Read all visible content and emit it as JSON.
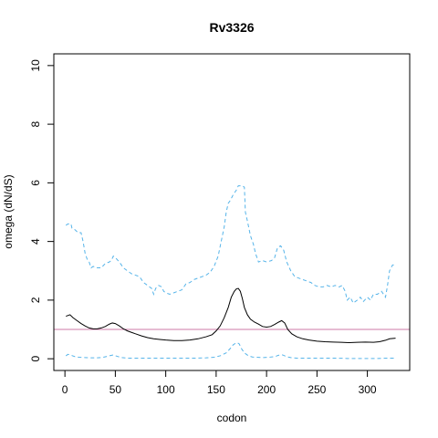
{
  "chart_data": {
    "type": "line",
    "title": "Rv3326",
    "xlabel": "codon",
    "ylabel": "omega (dN/dS)",
    "xlim": [
      -11,
      342
    ],
    "ylim": [
      -0.4,
      10.4
    ],
    "x_ticks": [
      0,
      50,
      100,
      150,
      200,
      250,
      300
    ],
    "y_ticks": [
      0,
      2,
      4,
      6,
      8,
      10
    ],
    "grid": false,
    "reference_line": {
      "y": 1,
      "color": "#cc79a7"
    },
    "series": [
      {
        "role": "upper",
        "color": "#56b4e9",
        "dash": "dashed",
        "points": [
          [
            1,
            4.55
          ],
          [
            3,
            4.6
          ],
          [
            6,
            4.6
          ],
          [
            7,
            4.45
          ],
          [
            10,
            4.4
          ],
          [
            13,
            4.3
          ],
          [
            16,
            4.3
          ],
          [
            18,
            4.0
          ],
          [
            20,
            3.6
          ],
          [
            22,
            3.4
          ],
          [
            24,
            3.3
          ],
          [
            26,
            3.1
          ],
          [
            28,
            3.15
          ],
          [
            32,
            3.1
          ],
          [
            36,
            3.1
          ],
          [
            40,
            3.25
          ],
          [
            44,
            3.3
          ],
          [
            46,
            3.35
          ],
          [
            48,
            3.5
          ],
          [
            50,
            3.45
          ],
          [
            54,
            3.3
          ],
          [
            58,
            3.1
          ],
          [
            62,
            3.0
          ],
          [
            66,
            2.9
          ],
          [
            70,
            2.85
          ],
          [
            74,
            2.8
          ],
          [
            78,
            2.6
          ],
          [
            82,
            2.5
          ],
          [
            86,
            2.4
          ],
          [
            88,
            2.2
          ],
          [
            90,
            2.4
          ],
          [
            93,
            2.5
          ],
          [
            96,
            2.45
          ],
          [
            98,
            2.3
          ],
          [
            100,
            2.25
          ],
          [
            104,
            2.2
          ],
          [
            108,
            2.25
          ],
          [
            112,
            2.3
          ],
          [
            116,
            2.35
          ],
          [
            120,
            2.55
          ],
          [
            124,
            2.6
          ],
          [
            128,
            2.7
          ],
          [
            132,
            2.75
          ],
          [
            136,
            2.8
          ],
          [
            140,
            2.85
          ],
          [
            144,
            2.95
          ],
          [
            148,
            3.15
          ],
          [
            152,
            3.5
          ],
          [
            155,
            4.0
          ],
          [
            158,
            4.5
          ],
          [
            160,
            5.0
          ],
          [
            162,
            5.3
          ],
          [
            164,
            5.4
          ],
          [
            167,
            5.6
          ],
          [
            170,
            5.75
          ],
          [
            172,
            5.9
          ],
          [
            176,
            5.9
          ],
          [
            178,
            5.85
          ],
          [
            179,
            5.0
          ],
          [
            181,
            4.7
          ],
          [
            184,
            4.2
          ],
          [
            187,
            3.9
          ],
          [
            189,
            3.6
          ],
          [
            192,
            3.3
          ],
          [
            196,
            3.35
          ],
          [
            200,
            3.3
          ],
          [
            205,
            3.35
          ],
          [
            208,
            3.45
          ],
          [
            211,
            3.8
          ],
          [
            214,
            3.85
          ],
          [
            217,
            3.7
          ],
          [
            220,
            3.3
          ],
          [
            224,
            3.0
          ],
          [
            228,
            2.8
          ],
          [
            232,
            2.75
          ],
          [
            236,
            2.7
          ],
          [
            240,
            2.65
          ],
          [
            244,
            2.6
          ],
          [
            248,
            2.5
          ],
          [
            252,
            2.45
          ],
          [
            256,
            2.45
          ],
          [
            260,
            2.5
          ],
          [
            264,
            2.45
          ],
          [
            268,
            2.5
          ],
          [
            272,
            2.45
          ],
          [
            275,
            2.5
          ],
          [
            278,
            2.3
          ],
          [
            280,
            2.0
          ],
          [
            283,
            2.1
          ],
          [
            286,
            1.9
          ],
          [
            290,
            2.0
          ],
          [
            293,
            2.1
          ],
          [
            296,
            1.95
          ],
          [
            300,
            2.1
          ],
          [
            303,
            2.0
          ],
          [
            306,
            2.2
          ],
          [
            310,
            2.2
          ],
          [
            314,
            2.3
          ],
          [
            316,
            2.2
          ],
          [
            318,
            2.1
          ],
          [
            320,
            2.5
          ],
          [
            322,
            3.0
          ],
          [
            325,
            3.2
          ],
          [
            328,
            3.2
          ]
        ]
      },
      {
        "role": "estimate",
        "color": "#000000",
        "dash": "solid",
        "points": [
          [
            1,
            1.45
          ],
          [
            5,
            1.5
          ],
          [
            8,
            1.4
          ],
          [
            12,
            1.3
          ],
          [
            16,
            1.2
          ],
          [
            20,
            1.12
          ],
          [
            24,
            1.05
          ],
          [
            28,
            1.02
          ],
          [
            32,
            1.02
          ],
          [
            36,
            1.05
          ],
          [
            40,
            1.1
          ],
          [
            44,
            1.18
          ],
          [
            47,
            1.22
          ],
          [
            50,
            1.2
          ],
          [
            54,
            1.12
          ],
          [
            58,
            1.02
          ],
          [
            62,
            0.95
          ],
          [
            66,
            0.9
          ],
          [
            70,
            0.85
          ],
          [
            76,
            0.78
          ],
          [
            82,
            0.72
          ],
          [
            88,
            0.68
          ],
          [
            94,
            0.66
          ],
          [
            100,
            0.64
          ],
          [
            108,
            0.62
          ],
          [
            116,
            0.62
          ],
          [
            124,
            0.64
          ],
          [
            132,
            0.68
          ],
          [
            140,
            0.75
          ],
          [
            146,
            0.82
          ],
          [
            150,
            0.95
          ],
          [
            154,
            1.12
          ],
          [
            158,
            1.4
          ],
          [
            162,
            1.75
          ],
          [
            165,
            2.1
          ],
          [
            168,
            2.3
          ],
          [
            170,
            2.38
          ],
          [
            172,
            2.4
          ],
          [
            174,
            2.3
          ],
          [
            176,
            2.05
          ],
          [
            178,
            1.75
          ],
          [
            181,
            1.5
          ],
          [
            184,
            1.35
          ],
          [
            188,
            1.25
          ],
          [
            192,
            1.18
          ],
          [
            196,
            1.1
          ],
          [
            200,
            1.08
          ],
          [
            204,
            1.1
          ],
          [
            208,
            1.17
          ],
          [
            212,
            1.25
          ],
          [
            215,
            1.3
          ],
          [
            218,
            1.22
          ],
          [
            221,
            1.0
          ],
          [
            225,
            0.85
          ],
          [
            230,
            0.75
          ],
          [
            236,
            0.68
          ],
          [
            242,
            0.64
          ],
          [
            250,
            0.6
          ],
          [
            258,
            0.58
          ],
          [
            266,
            0.57
          ],
          [
            274,
            0.56
          ],
          [
            282,
            0.55
          ],
          [
            290,
            0.56
          ],
          [
            298,
            0.57
          ],
          [
            306,
            0.56
          ],
          [
            312,
            0.58
          ],
          [
            318,
            0.63
          ],
          [
            322,
            0.68
          ],
          [
            328,
            0.7
          ]
        ]
      },
      {
        "role": "lower",
        "color": "#56b4e9",
        "dash": "dashed",
        "points": [
          [
            1,
            0.1
          ],
          [
            3,
            0.15
          ],
          [
            6,
            0.12
          ],
          [
            10,
            0.07
          ],
          [
            14,
            0.05
          ],
          [
            20,
            0.04
          ],
          [
            26,
            0.03
          ],
          [
            32,
            0.03
          ],
          [
            38,
            0.05
          ],
          [
            44,
            0.1
          ],
          [
            48,
            0.13
          ],
          [
            52,
            0.08
          ],
          [
            56,
            0.04
          ],
          [
            62,
            0.02
          ],
          [
            70,
            0.02
          ],
          [
            80,
            0.02
          ],
          [
            90,
            0.02
          ],
          [
            100,
            0.02
          ],
          [
            110,
            0.02
          ],
          [
            120,
            0.02
          ],
          [
            130,
            0.02
          ],
          [
            140,
            0.03
          ],
          [
            148,
            0.05
          ],
          [
            154,
            0.1
          ],
          [
            160,
            0.2
          ],
          [
            164,
            0.35
          ],
          [
            167,
            0.48
          ],
          [
            169,
            0.52
          ],
          [
            171,
            0.55
          ],
          [
            173,
            0.5
          ],
          [
            175,
            0.35
          ],
          [
            178,
            0.2
          ],
          [
            182,
            0.1
          ],
          [
            186,
            0.06
          ],
          [
            190,
            0.05
          ],
          [
            196,
            0.04
          ],
          [
            202,
            0.05
          ],
          [
            208,
            0.07
          ],
          [
            212,
            0.12
          ],
          [
            216,
            0.13
          ],
          [
            220,
            0.07
          ],
          [
            224,
            0.04
          ],
          [
            230,
            0.02
          ],
          [
            240,
            0.02
          ],
          [
            250,
            0.02
          ],
          [
            260,
            0.02
          ],
          [
            270,
            0.02
          ],
          [
            280,
            0.01
          ],
          [
            290,
            0.01
          ],
          [
            300,
            0.01
          ],
          [
            310,
            0.01
          ],
          [
            320,
            0.02
          ],
          [
            328,
            0.02
          ]
        ]
      }
    ]
  }
}
